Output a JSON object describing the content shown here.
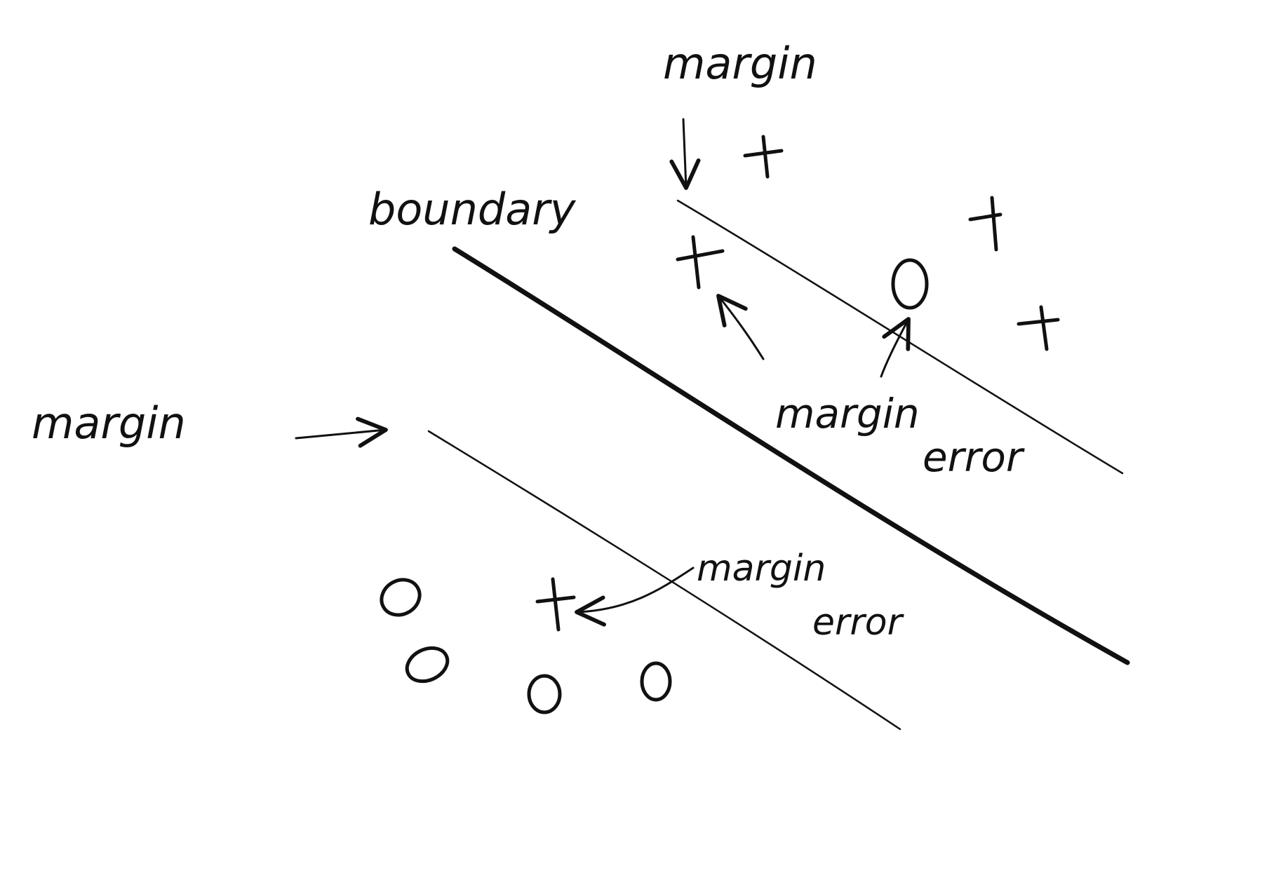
{
  "labels": {
    "margin_top": "margin",
    "boundary": "boundary",
    "margin_left": "margin",
    "margin_error_upper_word1": "margin",
    "margin_error_upper_word2": "error",
    "margin_error_lower_word1": "margin",
    "margin_error_lower_word2": "error"
  },
  "markers": {
    "plus_symbol": "+",
    "circle_symbol": "o"
  },
  "colors": {
    "ink": "#111111",
    "background": "#ffffff"
  }
}
